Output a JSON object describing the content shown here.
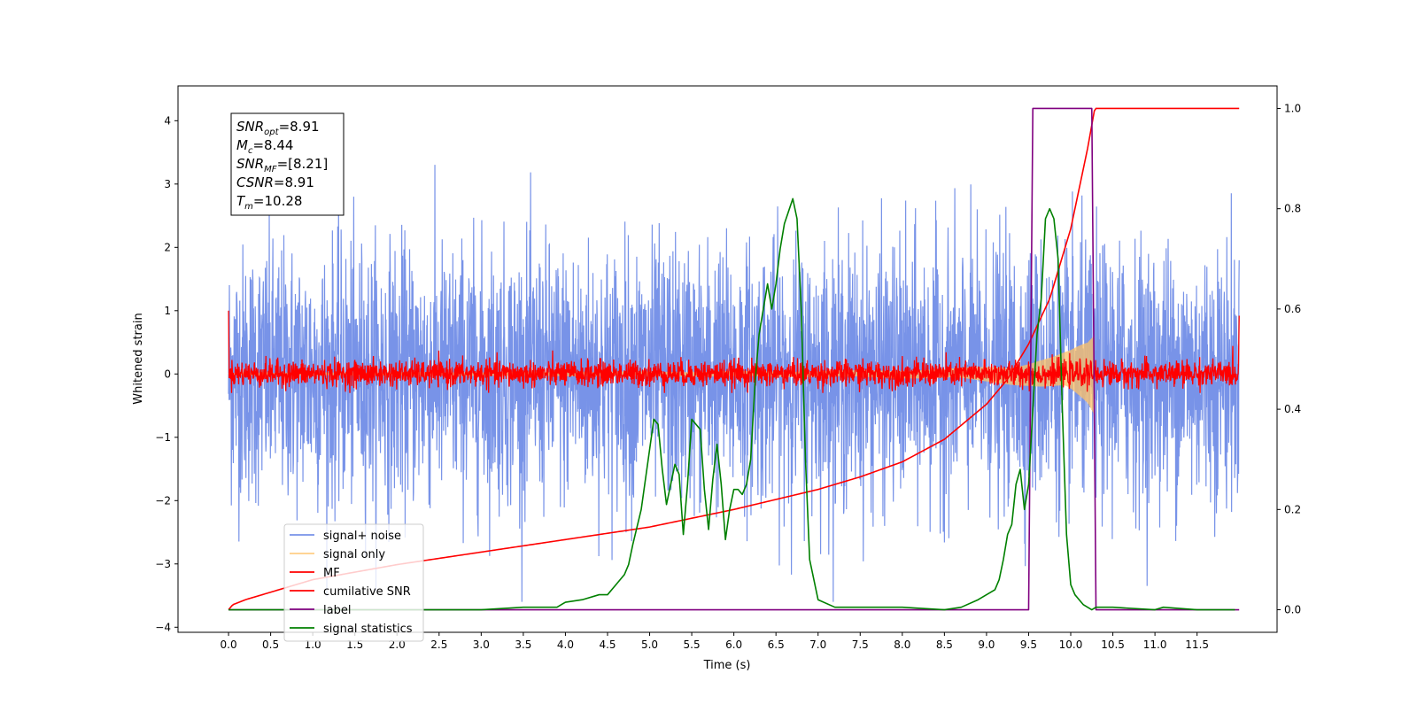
{
  "chart_data": {
    "type": "line",
    "title": "",
    "xlabel": "Time (s)",
    "ylabel": "Whitened strain",
    "ylabel_right": "",
    "xlim": [
      -0.6,
      12.45
    ],
    "ylim": [
      -4.08,
      4.55
    ],
    "ylim_right": [
      -0.045,
      1.045
    ],
    "x_ticks": [
      0.0,
      0.5,
      1.0,
      1.5,
      2.0,
      2.5,
      3.0,
      3.5,
      4.0,
      4.5,
      5.0,
      5.5,
      6.0,
      6.5,
      7.0,
      7.5,
      8.0,
      8.5,
      9.0,
      9.5,
      10.0,
      10.5,
      11.0,
      11.5
    ],
    "x_tick_labels": [
      "0.0",
      "0.5",
      "1.0",
      "1.5",
      "2.0",
      "2.5",
      "3.0",
      "3.5",
      "4.0",
      "4.5",
      "5.0",
      "5.5",
      "6.0",
      "6.5",
      "7.0",
      "7.5",
      "8.0",
      "8.5",
      "9.0",
      "9.5",
      "10.0",
      "10.5",
      "11.0",
      "11.5"
    ],
    "y_ticks": [
      -4,
      -3,
      -2,
      -1,
      0,
      1,
      2,
      3,
      4
    ],
    "y_tick_labels": [
      "−4",
      "−3",
      "−2",
      "−1",
      "0",
      "1",
      "2",
      "3",
      "4"
    ],
    "y_ticks_right": [
      0.0,
      0.2,
      0.4,
      0.6,
      0.8,
      1.0
    ],
    "y_tick_labels_right": [
      "0.0",
      "0.2",
      "0.4",
      "0.6",
      "0.8",
      "1.0"
    ],
    "grid": false,
    "legend_position": "lower-left",
    "annotation": [
      {
        "base": "SNR",
        "sub": "opt",
        "value": "=8.91"
      },
      {
        "base": "M",
        "sub": "c",
        "value": "=8.44"
      },
      {
        "base": "SNR",
        "sub": "MF",
        "value": "=[8.21]"
      },
      {
        "base": "CSNR",
        "sub": "",
        "value": "=8.91"
      },
      {
        "base": "T",
        "sub": "m",
        "value": "=10.28"
      }
    ],
    "series": [
      {
        "name": "signal+ noise",
        "axis": "left",
        "color": "#7893e8",
        "kind": "noise",
        "x_range": [
          0.0,
          12.0
        ],
        "typical_range": [
          -1.6,
          1.6
        ],
        "extreme_range": [
          -3.6,
          4.15
        ],
        "mean": 0.0
      },
      {
        "name": "signal only",
        "axis": "left",
        "color": "#ffc266",
        "kind": "chirp",
        "x_range": [
          0.0,
          10.28
        ],
        "envelope": {
          "x": [
            0.0,
            7.0,
            8.5,
            9.0,
            9.5,
            9.8,
            10.0,
            10.2,
            10.28
          ],
          "amp": [
            0.02,
            0.05,
            0.08,
            0.13,
            0.2,
            0.28,
            0.38,
            0.55,
            0.72
          ]
        }
      },
      {
        "name": "MF",
        "axis": "left",
        "color": "#ff0000",
        "kind": "noise",
        "x_range": [
          0.0,
          12.0
        ],
        "typical_range": [
          -0.2,
          0.25
        ],
        "extreme_range": [
          -0.3,
          0.45
        ],
        "edge_values": [
          1.0,
          0.92
        ]
      },
      {
        "name": "cumilative SNR",
        "axis": "right",
        "color": "#ff0000",
        "x": [
          0.0,
          0.05,
          0.2,
          0.5,
          1.0,
          2.0,
          3.0,
          4.0,
          5.0,
          6.0,
          7.0,
          7.5,
          8.0,
          8.5,
          9.0,
          9.25,
          9.5,
          9.75,
          10.0,
          10.1,
          10.2,
          10.28,
          10.3,
          11.5,
          12.0
        ],
        "y": [
          0.0,
          0.01,
          0.02,
          0.035,
          0.06,
          0.09,
          0.115,
          0.14,
          0.165,
          0.2,
          0.24,
          0.265,
          0.295,
          0.34,
          0.41,
          0.46,
          0.53,
          0.62,
          0.76,
          0.84,
          0.92,
          0.995,
          1.0,
          1.0,
          1.0
        ]
      },
      {
        "name": "label",
        "axis": "right",
        "color": "#800080",
        "x": [
          0.0,
          9.5,
          9.55,
          10.25,
          10.3,
          12.0
        ],
        "y": [
          0.0,
          0.0,
          1.0,
          1.0,
          0.0,
          0.0
        ]
      },
      {
        "name": "signal statistics",
        "axis": "right",
        "color": "#008000",
        "x": [
          0.0,
          0.5,
          1.0,
          2.0,
          3.0,
          3.5,
          3.9,
          4.0,
          4.2,
          4.4,
          4.5,
          4.6,
          4.7,
          4.75,
          4.8,
          4.9,
          5.0,
          5.05,
          5.1,
          5.15,
          5.2,
          5.3,
          5.35,
          5.4,
          5.45,
          5.5,
          5.55,
          5.6,
          5.65,
          5.7,
          5.75,
          5.8,
          5.85,
          5.9,
          5.95,
          6.0,
          6.05,
          6.1,
          6.15,
          6.2,
          6.25,
          6.3,
          6.4,
          6.45,
          6.5,
          6.55,
          6.6,
          6.7,
          6.75,
          6.8,
          6.85,
          6.9,
          7.0,
          7.2,
          7.5,
          8.0,
          8.5,
          8.7,
          8.9,
          9.0,
          9.1,
          9.15,
          9.2,
          9.25,
          9.3,
          9.35,
          9.4,
          9.45,
          9.5,
          9.55,
          9.6,
          9.65,
          9.7,
          9.75,
          9.8,
          9.85,
          9.9,
          9.95,
          10.0,
          10.05,
          10.1,
          10.15,
          10.2,
          10.25,
          10.3,
          10.5,
          11.0,
          11.1,
          11.5,
          11.95
        ],
        "y": [
          0.0,
          0.0,
          0.0,
          0.0,
          0.0,
          0.005,
          0.005,
          0.015,
          0.02,
          0.03,
          0.03,
          0.05,
          0.07,
          0.09,
          0.13,
          0.2,
          0.32,
          0.38,
          0.37,
          0.28,
          0.21,
          0.29,
          0.27,
          0.15,
          0.25,
          0.38,
          0.37,
          0.36,
          0.24,
          0.16,
          0.26,
          0.33,
          0.25,
          0.14,
          0.2,
          0.24,
          0.24,
          0.23,
          0.25,
          0.3,
          0.45,
          0.55,
          0.65,
          0.6,
          0.65,
          0.72,
          0.77,
          0.82,
          0.78,
          0.6,
          0.3,
          0.1,
          0.02,
          0.005,
          0.005,
          0.005,
          0.0,
          0.005,
          0.02,
          0.03,
          0.04,
          0.06,
          0.1,
          0.15,
          0.17,
          0.25,
          0.28,
          0.2,
          0.25,
          0.4,
          0.55,
          0.62,
          0.78,
          0.8,
          0.78,
          0.7,
          0.4,
          0.15,
          0.05,
          0.03,
          0.02,
          0.01,
          0.005,
          0.0,
          0.005,
          0.005,
          0.0,
          0.005,
          0.0,
          0.0
        ]
      }
    ]
  }
}
